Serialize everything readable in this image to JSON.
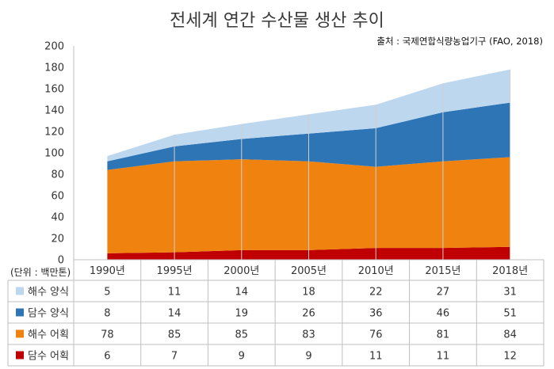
{
  "title": "전세계 연간 수산물 생산 추이",
  "source": "출처 : 국제연합식량농업기구 (FAO, 2018)",
  "unit_label": "(단위 : 백만톤)",
  "colors": {
    "marine_aquaculture": "#bdd7ee",
    "inland_aquaculture": "#2e75b6",
    "marine_capture": "#f0820f",
    "inland_capture": "#c00000"
  },
  "chart_data": {
    "type": "area",
    "stacked": true,
    "categories": [
      "1990년",
      "1995년",
      "2000년",
      "2005년",
      "2010년",
      "2015년",
      "2018년"
    ],
    "series": [
      {
        "name": "담수 어획",
        "key": "inland_capture",
        "values": [
          6,
          7,
          9,
          9,
          11,
          11,
          12
        ]
      },
      {
        "name": "해수 어획",
        "key": "marine_capture",
        "values": [
          78,
          85,
          85,
          83,
          76,
          81,
          84
        ]
      },
      {
        "name": "담수 양식",
        "key": "inland_aquaculture",
        "values": [
          8,
          14,
          19,
          26,
          36,
          46,
          51
        ]
      },
      {
        "name": "해수 양식",
        "key": "marine_aquaculture",
        "values": [
          5,
          11,
          14,
          18,
          22,
          27,
          31
        ]
      }
    ],
    "table_rows_order": [
      "marine_aquaculture",
      "inland_aquaculture",
      "marine_capture",
      "inland_capture"
    ],
    "ylim": [
      0,
      200
    ],
    "yticks": [
      0,
      20,
      40,
      60,
      80,
      100,
      120,
      140,
      160,
      180,
      200
    ],
    "grid": false,
    "legend": "data-table"
  }
}
